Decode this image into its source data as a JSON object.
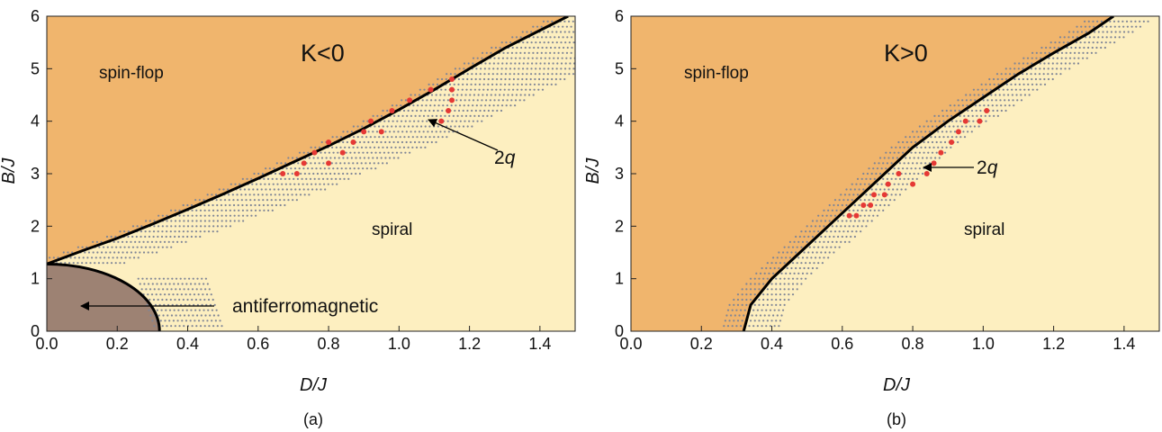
{
  "colors": {
    "spin_flop": "#f0b56d",
    "spiral": "#fdefc0",
    "antiferro": "#9d8273",
    "boundary": "#000000",
    "dots": "#7f8596",
    "red_points": "#e53935"
  },
  "chart_data": [
    {
      "type": "scatter",
      "panel": "(a)",
      "title": "K<0",
      "xlabel": "D/J",
      "ylabel": "B/J",
      "xlim": [
        0,
        1.5
      ],
      "ylim": [
        0,
        6
      ],
      "xticks": [
        "0.0",
        "0.2",
        "0.4",
        "0.6",
        "0.8",
        "1.0",
        "1.2",
        "1.4"
      ],
      "yticks": [
        "0",
        "1",
        "2",
        "3",
        "4",
        "5",
        "6"
      ],
      "regions": [
        "spin-flop",
        "spiral",
        "antiferromagnetic"
      ],
      "afm_boundary": {
        "B_at_D0": 1.28,
        "D_at_B0": 0.32
      },
      "phase_boundary": [
        [
          0.0,
          1.28
        ],
        [
          0.1,
          1.53
        ],
        [
          0.2,
          1.77
        ],
        [
          0.3,
          2.04
        ],
        [
          0.4,
          2.32
        ],
        [
          0.5,
          2.61
        ],
        [
          0.6,
          2.91
        ],
        [
          0.7,
          3.22
        ],
        [
          0.8,
          3.53
        ],
        [
          0.9,
          3.86
        ],
        [
          1.0,
          4.22
        ],
        [
          1.1,
          4.6
        ],
        [
          1.2,
          5.0
        ],
        [
          1.3,
          5.39
        ],
        [
          1.4,
          5.73
        ],
        [
          1.48,
          6.0
        ]
      ],
      "red_points": [
        [
          0.67,
          3.0
        ],
        [
          0.71,
          3.0
        ],
        [
          0.73,
          3.2
        ],
        [
          0.76,
          3.4
        ],
        [
          0.8,
          3.2
        ],
        [
          0.84,
          3.4
        ],
        [
          0.8,
          3.6
        ],
        [
          0.87,
          3.6
        ],
        [
          0.9,
          3.8
        ],
        [
          0.92,
          4.0
        ],
        [
          0.95,
          3.8
        ],
        [
          0.98,
          4.2
        ],
        [
          1.03,
          4.4
        ],
        [
          1.12,
          4.0
        ],
        [
          1.14,
          4.2
        ],
        [
          1.15,
          4.4
        ],
        [
          1.15,
          4.6
        ],
        [
          1.15,
          4.8
        ],
        [
          1.09,
          4.6
        ]
      ],
      "annotations": [
        {
          "text": "2",
          "italic_suffix": "q",
          "arrow_to": [
            1.02,
            4.05
          ],
          "arrow_from": [
            1.28,
            3.4
          ]
        },
        {
          "text": "antiferromagnetic",
          "arrow_to": [
            0.04,
            0.55
          ],
          "arrow_from": [
            0.45,
            0.55
          ]
        }
      ],
      "caption": "(a)"
    },
    {
      "type": "scatter",
      "panel": "(b)",
      "title": "K>0",
      "xlabel": "D/J",
      "ylabel": "B/J",
      "xlim": [
        0,
        1.5
      ],
      "ylim": [
        0,
        6
      ],
      "xticks": [
        "0.0",
        "0.2",
        "0.4",
        "0.6",
        "0.8",
        "1.0",
        "1.2",
        "1.4"
      ],
      "yticks": [
        "0",
        "1",
        "2",
        "3",
        "4",
        "5",
        "6"
      ],
      "regions": [
        "spin-flop",
        "spiral"
      ],
      "phase_boundary": [
        [
          0.32,
          0.0
        ],
        [
          0.34,
          0.5
        ],
        [
          0.4,
          1.0
        ],
        [
          0.48,
          1.5
        ],
        [
          0.56,
          2.0
        ],
        [
          0.64,
          2.5
        ],
        [
          0.72,
          3.0
        ],
        [
          0.8,
          3.5
        ],
        [
          0.9,
          4.0
        ],
        [
          1.0,
          4.45
        ],
        [
          1.1,
          4.9
        ],
        [
          1.2,
          5.3
        ],
        [
          1.3,
          5.68
        ],
        [
          1.37,
          6.0
        ]
      ],
      "red_points": [
        [
          0.62,
          2.2
        ],
        [
          0.64,
          2.2
        ],
        [
          0.66,
          2.4
        ],
        [
          0.68,
          2.4
        ],
        [
          0.69,
          2.6
        ],
        [
          0.72,
          2.6
        ],
        [
          0.73,
          2.8
        ],
        [
          0.8,
          2.8
        ],
        [
          0.76,
          3.0
        ],
        [
          0.84,
          3.0
        ],
        [
          0.86,
          3.2
        ],
        [
          0.91,
          3.6
        ],
        [
          0.93,
          3.8
        ],
        [
          0.95,
          4.0
        ],
        [
          0.99,
          4.0
        ],
        [
          1.01,
          4.2
        ],
        [
          0.88,
          3.4
        ]
      ],
      "annotations": [
        {
          "text": "2",
          "italic_suffix": "q",
          "arrow_to": [
            0.76,
            3.1
          ],
          "arrow_from": [
            0.9,
            3.1
          ]
        }
      ],
      "caption": "(b)"
    }
  ]
}
